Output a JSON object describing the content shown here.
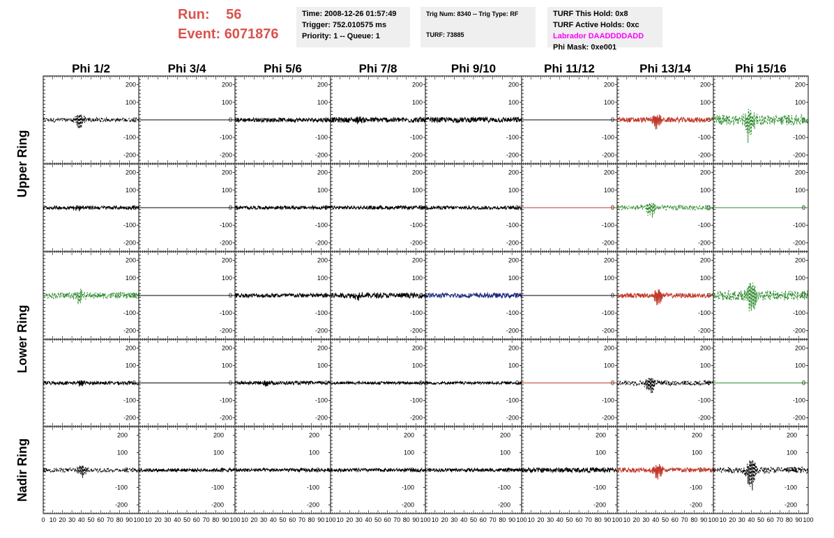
{
  "header": {
    "run_label": "Run:",
    "run_value": "56",
    "event_label": "Event:",
    "event_value": "6071876"
  },
  "info_time": {
    "time": "Time: 2008-12-26 01:57:49",
    "trigger": "Trigger: 752.010575 ms",
    "priority": "Priority: 1 -- Queue: 1"
  },
  "info_trig": {
    "trig": "Trig Num: 8340 -- Trig Type: RF",
    "turf": "TURF: 73885"
  },
  "info_turf": {
    "hold": "TURF This Hold: 0x8",
    "active": "TURF Active Holds: 0xc",
    "labrador": "Labrador DAADDDDADD",
    "phimask": "Phi Mask: 0xe001",
    "labrador_color": "#ff00ff"
  },
  "columns": [
    "Phi 1/2",
    "Phi 3/4",
    "Phi 5/6",
    "Phi 7/8",
    "Phi 9/10",
    "Phi 11/12",
    "Phi 13/14",
    "Phi 15/16"
  ],
  "ring_labels": [
    "Upper Ring",
    "Lower Ring",
    "Nadir Ring"
  ],
  "chart_data": {
    "type": "line",
    "xlim": [
      0,
      100
    ],
    "ylim": [
      -250,
      250
    ],
    "y_ticks": [
      -200,
      -100,
      0,
      100,
      200
    ],
    "x_tick_labels": [
      "0",
      "10",
      "20",
      "30",
      "40",
      "50",
      "60",
      "70",
      "80",
      "90",
      "100"
    ],
    "colors": {
      "k": "#000000",
      "r": "#c0392b",
      "g": "#2e8b2e",
      "b": "#1a237e"
    },
    "rows": [
      {
        "ring": "Upper Ring",
        "panels": [
          {
            "color": "k",
            "dashed": true,
            "noise": 12,
            "burst": 60,
            "center": 38
          },
          {
            "color": "k",
            "dashed": false,
            "noise": 0,
            "burst": 0,
            "center": 40
          },
          {
            "color": "k",
            "dashed": false,
            "noise": 12,
            "burst": 0,
            "center": 40
          },
          {
            "color": "k",
            "dashed": false,
            "noise": 15,
            "burst": 15,
            "center": 30
          },
          {
            "color": "k",
            "dashed": false,
            "noise": 15,
            "burst": 0,
            "center": 40
          },
          {
            "color": "k",
            "dashed": false,
            "noise": 0,
            "burst": 0,
            "center": 40
          },
          {
            "color": "r",
            "dashed": false,
            "noise": 15,
            "burst": 55,
            "center": 42
          },
          {
            "color": "g",
            "dashed": true,
            "noise": 30,
            "burst": 120,
            "center": 38
          }
        ]
      },
      {
        "ring": "Upper Ring",
        "panels": [
          {
            "color": "k",
            "dashed": false,
            "noise": 10,
            "burst": 18,
            "center": 37
          },
          {
            "color": "k",
            "dashed": false,
            "noise": 0,
            "burst": 0,
            "center": 40
          },
          {
            "color": "k",
            "dashed": false,
            "noise": 10,
            "burst": 0,
            "center": 40
          },
          {
            "color": "k",
            "dashed": false,
            "noise": 10,
            "burst": 0,
            "center": 40
          },
          {
            "color": "k",
            "dashed": false,
            "noise": 10,
            "burst": 0,
            "center": 40
          },
          {
            "color": "r",
            "dashed": false,
            "noise": 0,
            "burst": 0,
            "center": 40
          },
          {
            "color": "g",
            "dashed": true,
            "noise": 14,
            "burst": 55,
            "center": 35
          },
          {
            "color": "g",
            "dashed": false,
            "noise": 0,
            "burst": 0,
            "center": 40
          }
        ]
      },
      {
        "ring": "Lower Ring",
        "panels": [
          {
            "color": "g",
            "dashed": true,
            "noise": 18,
            "burst": 45,
            "center": 38
          },
          {
            "color": "k",
            "dashed": false,
            "noise": 0,
            "burst": 0,
            "center": 40
          },
          {
            "color": "k",
            "dashed": false,
            "noise": 12,
            "burst": 0,
            "center": 40
          },
          {
            "color": "k",
            "dashed": false,
            "noise": 15,
            "burst": 20,
            "center": 30
          },
          {
            "color": "b",
            "dashed": false,
            "noise": 14,
            "burst": 0,
            "center": 40
          },
          {
            "color": "k",
            "dashed": false,
            "noise": 0,
            "burst": 0,
            "center": 40
          },
          {
            "color": "r",
            "dashed": false,
            "noise": 14,
            "burst": 50,
            "center": 42
          },
          {
            "color": "g",
            "dashed": true,
            "noise": 28,
            "burst": 110,
            "center": 40
          }
        ]
      },
      {
        "ring": "Lower Ring",
        "panels": [
          {
            "color": "k",
            "dashed": false,
            "noise": 10,
            "burst": 16,
            "center": 40
          },
          {
            "color": "k",
            "dashed": false,
            "noise": 0,
            "burst": 0,
            "center": 40
          },
          {
            "color": "k",
            "dashed": false,
            "noise": 10,
            "burst": 18,
            "center": 32
          },
          {
            "color": "k",
            "dashed": false,
            "noise": 8,
            "burst": 0,
            "center": 40
          },
          {
            "color": "k",
            "dashed": false,
            "noise": 8,
            "burst": 0,
            "center": 40
          },
          {
            "color": "r",
            "dashed": false,
            "noise": 0,
            "burst": 0,
            "center": 40
          },
          {
            "color": "k",
            "dashed": true,
            "noise": 14,
            "burst": 65,
            "center": 35
          },
          {
            "color": "g",
            "dashed": false,
            "noise": 0,
            "burst": 0,
            "center": 40
          }
        ]
      },
      {
        "ring": "Nadir Ring",
        "panels": [
          {
            "color": "k",
            "dashed": true,
            "noise": 12,
            "burst": 45,
            "center": 40
          },
          {
            "color": "k",
            "dashed": false,
            "noise": 10,
            "burst": 0,
            "center": 40
          },
          {
            "color": "k",
            "dashed": false,
            "noise": 10,
            "burst": 0,
            "center": 40
          },
          {
            "color": "k",
            "dashed": false,
            "noise": 10,
            "burst": 0,
            "center": 40
          },
          {
            "color": "k",
            "dashed": false,
            "noise": 10,
            "burst": 0,
            "center": 40
          },
          {
            "color": "k",
            "dashed": false,
            "noise": 14,
            "burst": 0,
            "center": 40
          },
          {
            "color": "r",
            "dashed": false,
            "noise": 14,
            "burst": 55,
            "center": 42
          },
          {
            "color": "k",
            "dashed": true,
            "noise": 18,
            "burst": 110,
            "center": 40
          }
        ]
      }
    ]
  }
}
